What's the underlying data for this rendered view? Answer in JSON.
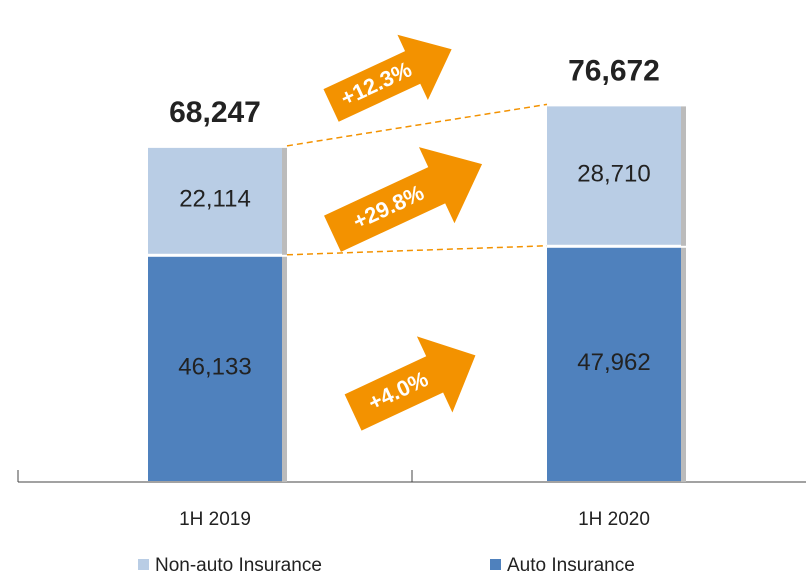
{
  "chart_data": {
    "type": "stacked-bar",
    "categories": [
      "1H 2019",
      "1H 2020"
    ],
    "series": [
      {
        "name": "Auto Insurance",
        "color": "#4f81bd",
        "values": [
          46133,
          47962
        ],
        "value_labels": [
          "46,133",
          "47,962"
        ]
      },
      {
        "name": "Non-auto Insurance",
        "color": "#b9cde5",
        "values": [
          22114,
          28710
        ],
        "value_labels": [
          "22,114",
          "28,710"
        ]
      }
    ],
    "totals": [
      68247,
      76672
    ],
    "total_labels": [
      "68,247",
      "76,672"
    ],
    "annotations": [
      "+12.3%",
      "+29.8%",
      "+4.0%"
    ],
    "ylim": [
      0,
      80000
    ]
  }
}
